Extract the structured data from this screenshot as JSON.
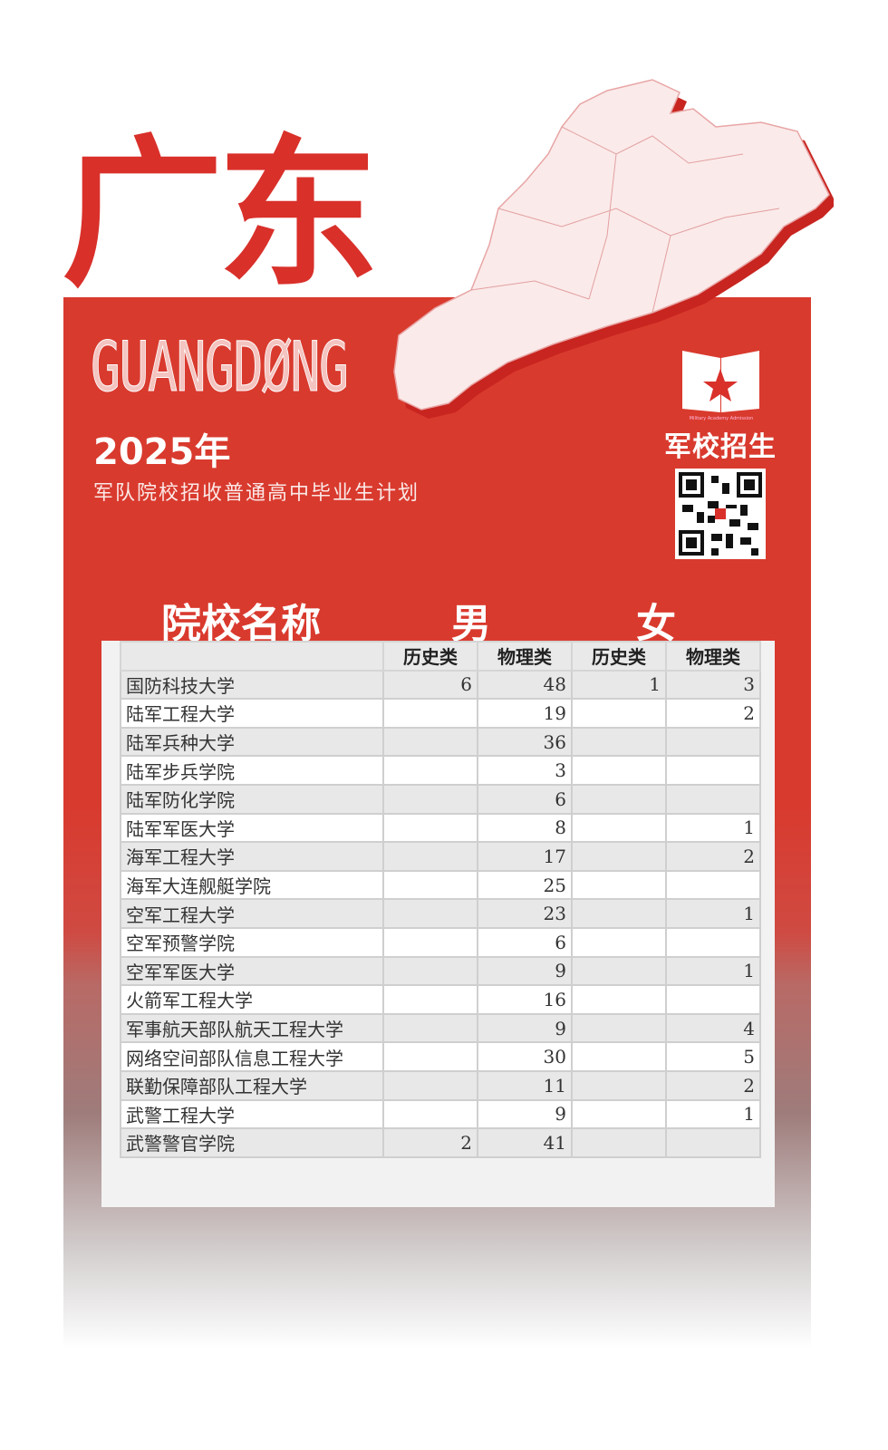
{
  "title": "广东",
  "pinyin": "GUANGDØNG",
  "year": "2025年",
  "subtitle": "军队院校招收普通高中毕业生计划",
  "logo": {
    "text": "军校招生",
    "subtext": "Military Academy Admission"
  },
  "colors": {
    "brand_red": "#d9302a",
    "panel_red": "#d93a2e"
  },
  "table": {
    "col_name": "院校名称",
    "group_male": "男",
    "group_female": "女",
    "subheaders": [
      "历史类",
      "物理类",
      "历史类",
      "物理类"
    ],
    "rows": [
      {
        "name": "国防科技大学",
        "v": [
          "6",
          "48",
          "1",
          "3"
        ]
      },
      {
        "name": "陆军工程大学",
        "v": [
          "",
          "19",
          "",
          "2"
        ]
      },
      {
        "name": "陆军兵种大学",
        "v": [
          "",
          "36",
          "",
          ""
        ]
      },
      {
        "name": "陆军步兵学院",
        "v": [
          "",
          "3",
          "",
          ""
        ]
      },
      {
        "name": "陆军防化学院",
        "v": [
          "",
          "6",
          "",
          ""
        ]
      },
      {
        "name": "陆军军医大学",
        "v": [
          "",
          "8",
          "",
          "1"
        ]
      },
      {
        "name": "海军工程大学",
        "v": [
          "",
          "17",
          "",
          "2"
        ]
      },
      {
        "name": "海军大连舰艇学院",
        "v": [
          "",
          "25",
          "",
          ""
        ]
      },
      {
        "name": "空军工程大学",
        "v": [
          "",
          "23",
          "",
          "1"
        ]
      },
      {
        "name": "空军预警学院",
        "v": [
          "",
          "6",
          "",
          ""
        ]
      },
      {
        "name": "空军军医大学",
        "v": [
          "",
          "9",
          "",
          "1"
        ]
      },
      {
        "name": "火箭军工程大学",
        "v": [
          "",
          "16",
          "",
          ""
        ]
      },
      {
        "name": "军事航天部队航天工程大学",
        "v": [
          "",
          "9",
          "",
          "4"
        ]
      },
      {
        "name": "网络空间部队信息工程大学",
        "v": [
          "",
          "30",
          "",
          "5"
        ]
      },
      {
        "name": "联勤保障部队工程大学",
        "v": [
          "",
          "11",
          "",
          "2"
        ]
      },
      {
        "name": "武警工程大学",
        "v": [
          "",
          "9",
          "",
          "1"
        ]
      },
      {
        "name": "武警警官学院",
        "v": [
          "2",
          "41",
          "",
          ""
        ]
      }
    ]
  }
}
